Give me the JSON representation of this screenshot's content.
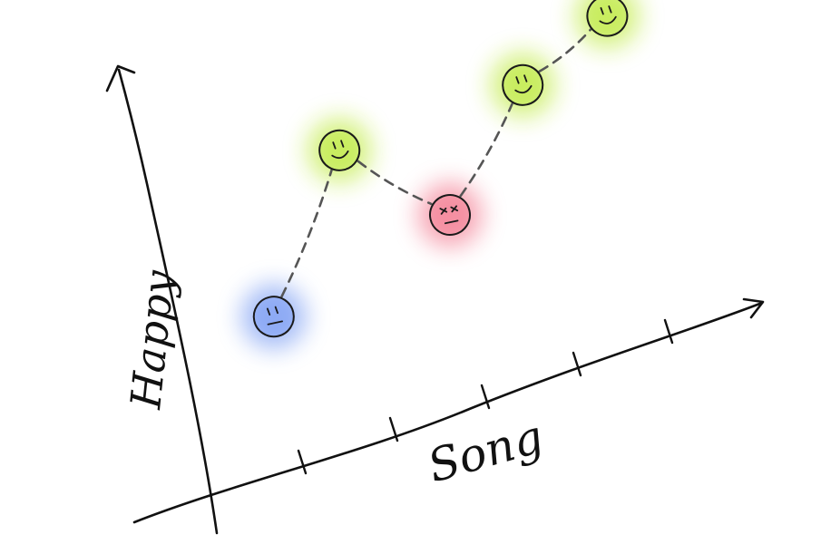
{
  "chart_data": {
    "type": "line",
    "title": "",
    "xlabel": "Song",
    "ylabel": "Happy",
    "x": [
      1,
      2,
      3,
      4,
      5
    ],
    "xlim": [
      0,
      6
    ],
    "ylim": [
      0,
      6
    ],
    "grid": false,
    "series": [
      {
        "values": [
          2.4,
          4.6,
          3.0,
          4.6,
          5.2
        ],
        "moods": [
          "neutral",
          "happy",
          "angry",
          "happy",
          "happy"
        ],
        "mood_colors": {
          "neutral": "#5f88f0",
          "happy": "#b3e61f",
          "angry": "#f0607a"
        }
      }
    ]
  }
}
